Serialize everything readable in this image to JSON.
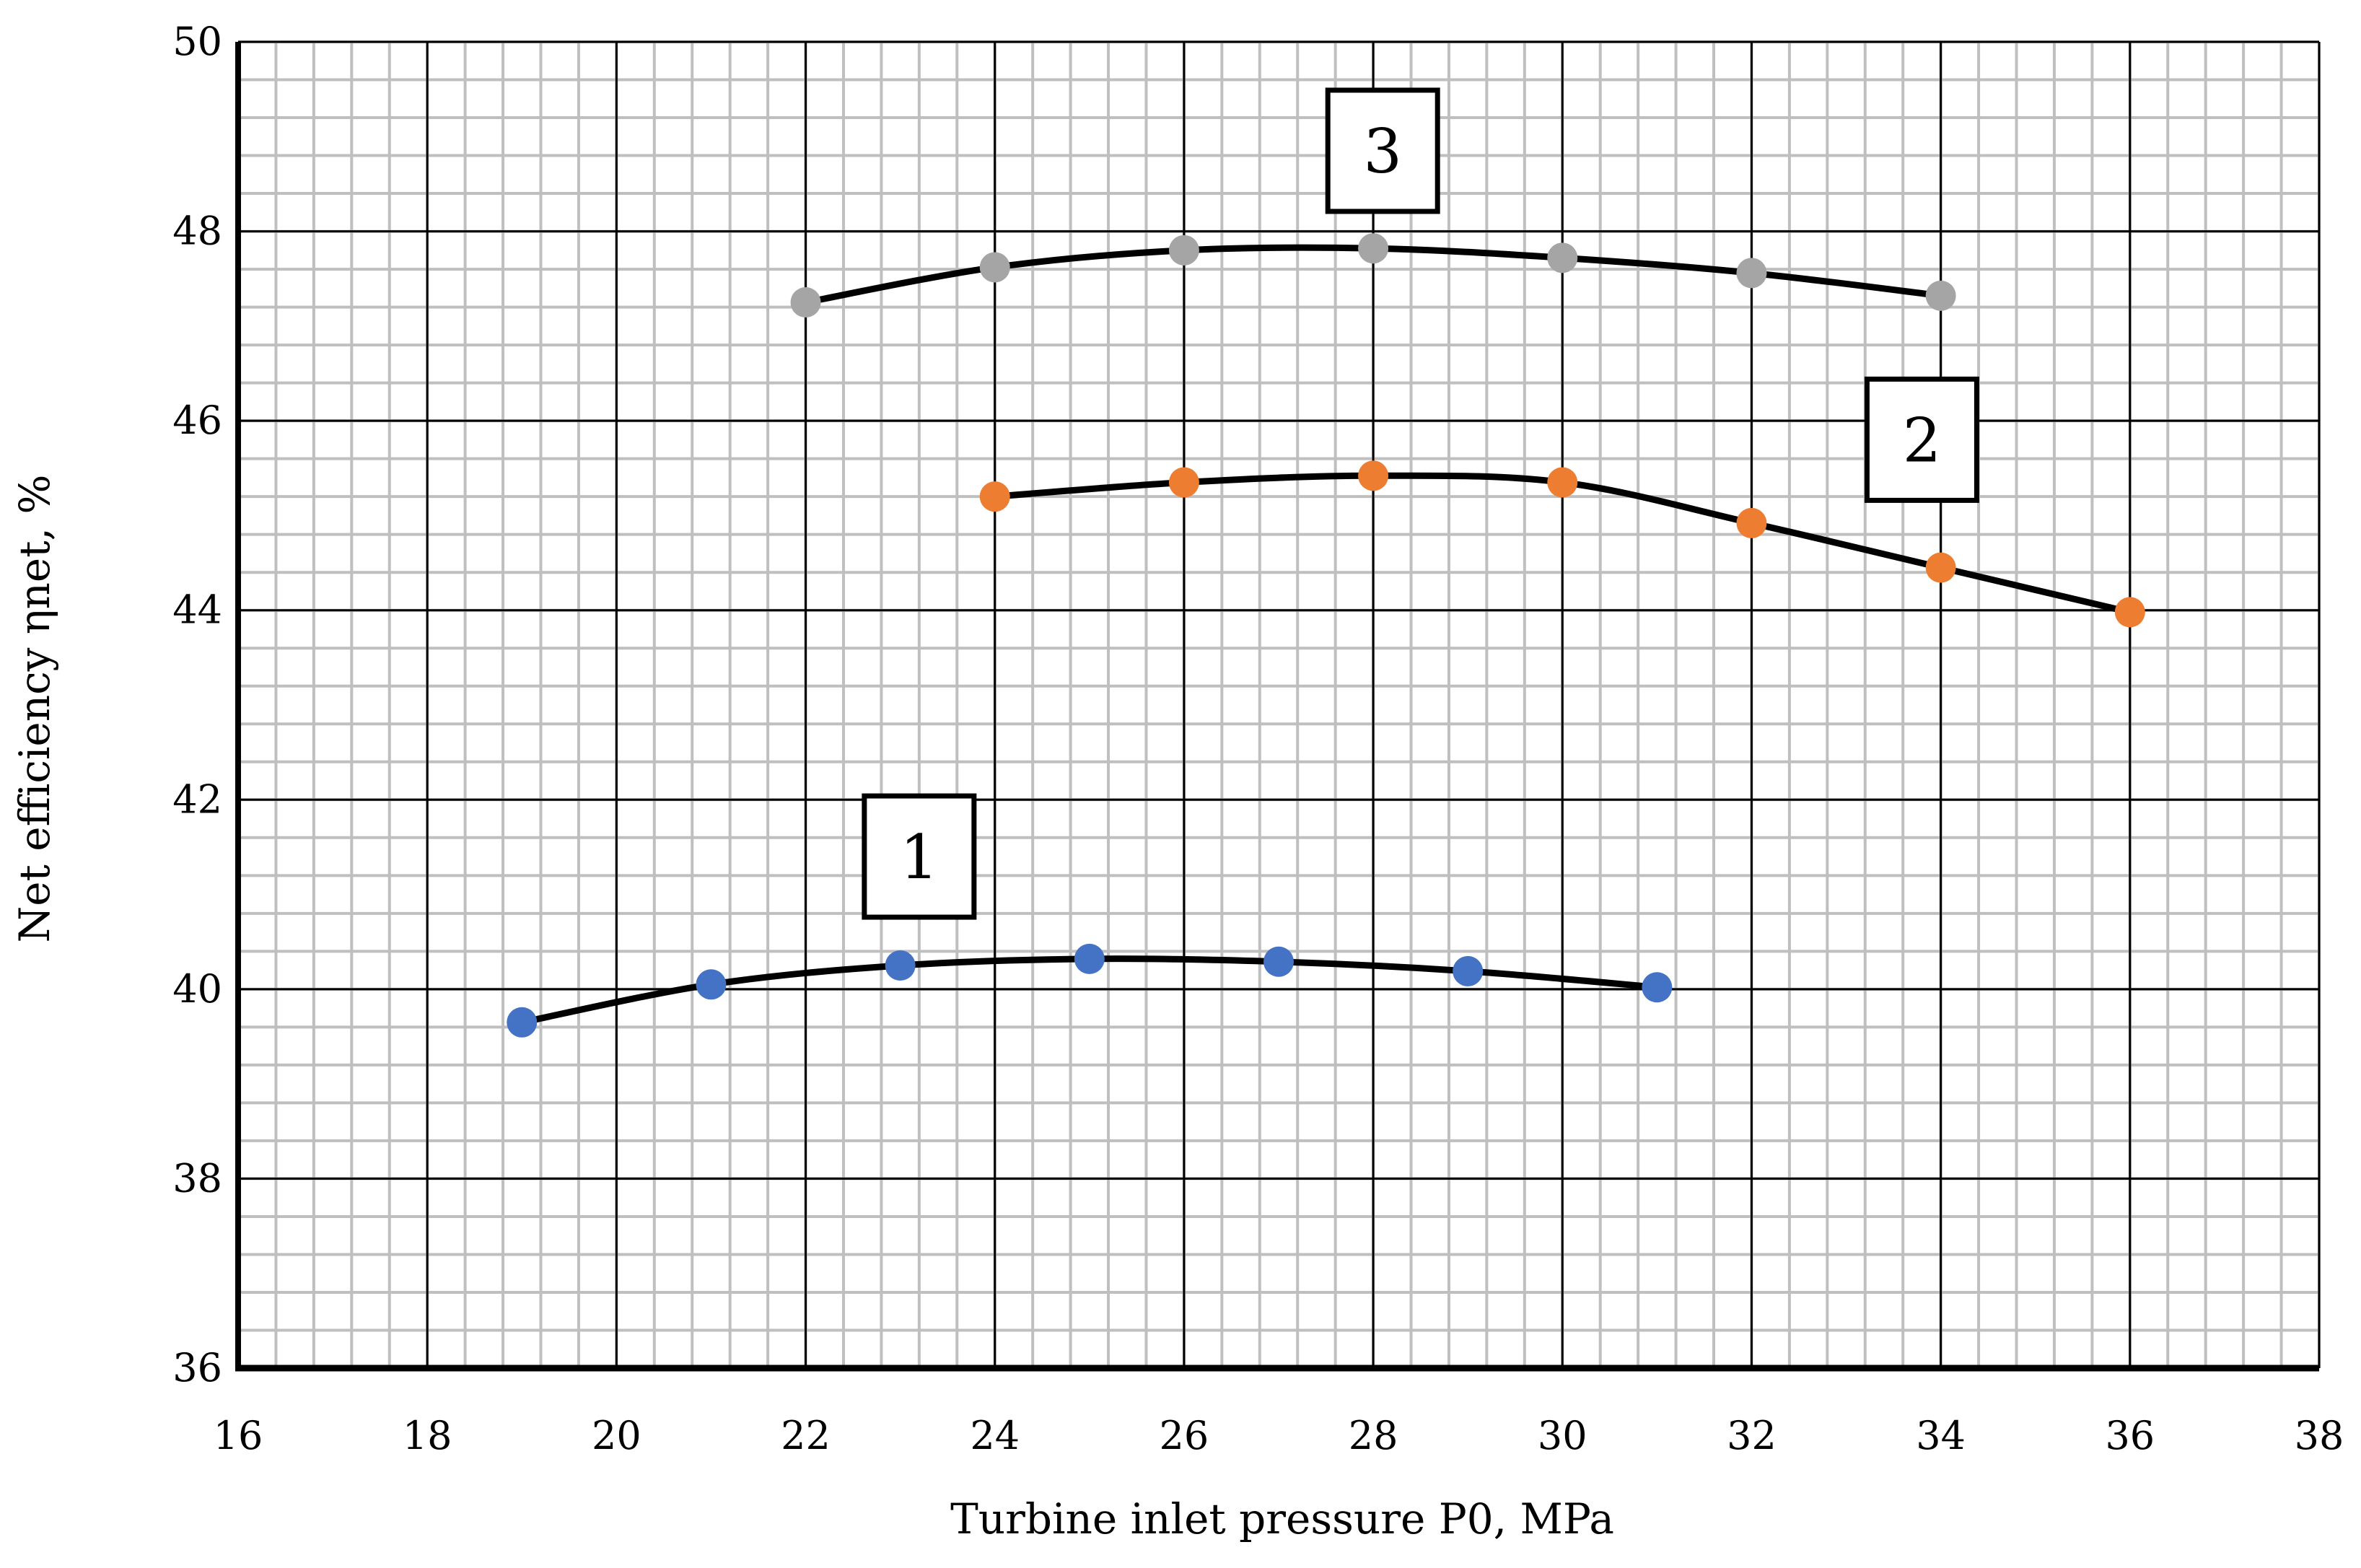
{
  "chart_data": {
    "type": "scatter",
    "title": "",
    "xlabel": "Turbine inlet pressure P0, MPa",
    "ylabel": "Net efficiency ηnet, %",
    "xlim": [
      16,
      38
    ],
    "ylim": [
      36,
      50
    ],
    "x_ticks": [
      16,
      18,
      20,
      22,
      24,
      26,
      28,
      30,
      32,
      34,
      36,
      38
    ],
    "y_ticks": [
      36,
      38,
      40,
      42,
      44,
      46,
      48,
      50
    ],
    "grid": true,
    "minor_grid": true,
    "legend": "none",
    "series": [
      {
        "label": "1",
        "color": "#4472c4",
        "x": [
          19,
          21,
          23,
          25,
          27,
          29,
          31
        ],
        "y": [
          39.65,
          40.05,
          40.25,
          40.32,
          40.29,
          40.19,
          40.02
        ]
      },
      {
        "label": "2",
        "color": "#ed7d31",
        "x": [
          24,
          26,
          28,
          30,
          32,
          34,
          36
        ],
        "y": [
          45.2,
          45.35,
          45.42,
          45.35,
          44.92,
          44.45,
          43.98
        ]
      },
      {
        "label": "3",
        "color": "#a5a5a5",
        "x": [
          22,
          24,
          26,
          28,
          30,
          32,
          34
        ],
        "y": [
          47.25,
          47.62,
          47.8,
          47.82,
          47.72,
          47.56,
          47.32
        ]
      }
    ],
    "curve_labels": [
      {
        "text": "1",
        "series": 0,
        "x": 23.2,
        "y": 41.4
      },
      {
        "text": "2",
        "series": 1,
        "x": 33.8,
        "y": 45.8
      },
      {
        "text": "3",
        "series": 2,
        "x": 28.1,
        "y": 48.85
      }
    ]
  }
}
